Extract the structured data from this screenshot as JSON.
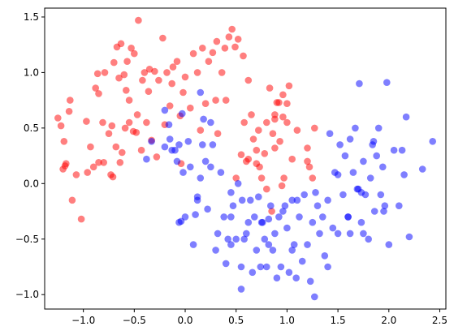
{
  "chart_data": {
    "type": "scatter",
    "title": "",
    "xlabel": "",
    "ylabel": "",
    "xlim": [
      -1.38,
      2.56
    ],
    "ylim": [
      -1.13,
      1.58
    ],
    "xticks": [
      -1.0,
      -0.5,
      0.0,
      0.5,
      1.0,
      1.5,
      2.0,
      2.5
    ],
    "xtick_labels": [
      "−1.0",
      "−0.5",
      "0.0",
      "0.5",
      "1.0",
      "1.5",
      "2.0",
      "2.5"
    ],
    "yticks": [
      -1.0,
      -0.5,
      0.0,
      0.5,
      1.0,
      1.5
    ],
    "ytick_labels": [
      "−1.0",
      "−0.5",
      "0.0",
      "0.5",
      "1.0",
      "1.5"
    ],
    "grid": false,
    "legend": false,
    "marker_alpha": 0.5,
    "series": [
      {
        "color": "#ff0000",
        "points": [
          [
            -1.25,
            0.59
          ],
          [
            -1.22,
            0.52
          ],
          [
            -1.2,
            0.13
          ],
          [
            -1.19,
            0.38
          ],
          [
            -1.18,
            0.16
          ],
          [
            -1.17,
            0.18
          ],
          [
            -1.14,
            0.65
          ],
          [
            -1.13,
            0.75
          ],
          [
            -1.11,
            -0.15
          ],
          [
            -1.07,
            0.08
          ],
          [
            -1.02,
            -0.32
          ],
          [
            -0.97,
            0.56
          ],
          [
            -0.96,
            0.1
          ],
          [
            -0.93,
            0.33
          ],
          [
            -0.9,
            0.15
          ],
          [
            -0.88,
            0.86
          ],
          [
            -0.86,
            0.99
          ],
          [
            -0.85,
            0.81
          ],
          [
            -0.81,
            0.55
          ],
          [
            -0.8,
            0.19
          ],
          [
            -0.79,
            1.0
          ],
          [
            -0.75,
            0.45
          ],
          [
            -0.73,
            0.08
          ],
          [
            -0.72,
            0.52
          ],
          [
            -0.71,
            0.06
          ],
          [
            -0.7,
            1.09
          ],
          [
            -0.68,
            0.33
          ],
          [
            -0.67,
            1.23
          ],
          [
            -0.65,
            0.95
          ],
          [
            -0.64,
            0.19
          ],
          [
            -0.63,
            1.26
          ],
          [
            -0.62,
            0.28
          ],
          [
            -0.6,
            0.98
          ],
          [
            -0.59,
            0.5
          ],
          [
            -0.58,
            0.84
          ],
          [
            -0.57,
            1.1
          ],
          [
            -0.55,
            0.75
          ],
          [
            -0.55,
            0.55
          ],
          [
            -0.53,
            1.22
          ],
          [
            -0.51,
            0.47
          ],
          [
            -0.5,
            1.17
          ],
          [
            -0.48,
            0.46
          ],
          [
            -0.47,
            0.62
          ],
          [
            -0.46,
            1.47
          ],
          [
            -0.43,
            0.3
          ],
          [
            -0.42,
            0.93
          ],
          [
            -0.4,
            1.0
          ],
          [
            -0.38,
            0.55
          ],
          [
            -0.36,
            0.83
          ],
          [
            -0.35,
            1.03
          ],
          [
            -0.33,
            0.39
          ],
          [
            -0.3,
            1.01
          ],
          [
            -0.28,
            0.24
          ],
          [
            -0.26,
            0.93
          ],
          [
            -0.22,
            1.31
          ],
          [
            -0.2,
            0.53
          ],
          [
            -0.18,
            1.0
          ],
          [
            -0.15,
            0.7
          ],
          [
            -0.13,
            0.9
          ],
          [
            -0.12,
            1.05
          ],
          [
            -0.08,
            1.1
          ],
          [
            -0.05,
            0.61
          ],
          [
            -0.02,
            0.82
          ],
          [
            0.0,
            0.96
          ],
          [
            0.05,
            0.68
          ],
          [
            0.08,
            1.17
          ],
          [
            0.12,
            1.0
          ],
          [
            0.15,
            0.48
          ],
          [
            0.17,
            1.22
          ],
          [
            0.2,
            0.72
          ],
          [
            0.23,
            1.1
          ],
          [
            0.27,
            1.18
          ],
          [
            0.3,
            0.75
          ],
          [
            0.32,
            0.45
          ],
          [
            0.36,
            1.0
          ],
          [
            0.39,
            1.22
          ],
          [
            0.43,
            1.32
          ],
          [
            0.46,
            1.39
          ],
          [
            0.49,
            1.23
          ],
          [
            0.52,
            1.3
          ],
          [
            0.55,
            0.26
          ],
          [
            0.58,
            0.55
          ],
          [
            0.6,
            0.2
          ],
          [
            0.62,
            0.93
          ],
          [
            0.65,
            0.62
          ],
          [
            0.67,
            0.4
          ],
          [
            0.7,
            0.18
          ],
          [
            0.72,
            0.48
          ],
          [
            0.75,
            0.05
          ],
          [
            0.78,
            0.27
          ],
          [
            0.8,
            0.55
          ],
          [
            0.83,
            0.86
          ],
          [
            0.86,
            0.45
          ],
          [
            0.88,
            0.62
          ],
          [
            0.9,
            0.73
          ],
          [
            0.93,
            0.38
          ],
          [
            0.96,
            0.6
          ],
          [
            1.0,
            0.55
          ],
          [
            1.1,
            0.48
          ],
          [
            1.2,
            0.32
          ],
          [
            1.22,
            0.15
          ],
          [
            1.25,
            0.05
          ],
          [
            1.27,
            0.5
          ],
          [
            1.0,
            0.72
          ],
          [
            0.85,
            -0.25
          ],
          [
            0.8,
            -0.05
          ],
          [
            0.95,
            -0.02
          ],
          [
            1.05,
            0.22
          ],
          [
            0.7,
            0.3
          ],
          [
            0.5,
            0.05
          ],
          [
            0.57,
            1.15
          ],
          [
            0.62,
            0.22
          ],
          [
            0.88,
            0.32
          ],
          [
            0.97,
            0.05
          ],
          [
            0.73,
            0.15
          ],
          [
            0.96,
            0.8
          ],
          [
            0.4,
            0.75
          ],
          [
            1.2,
            0.2
          ],
          [
            0.88,
            0.58
          ],
          [
            0.31,
            1.28
          ],
          [
            -0.04,
            0.18
          ],
          [
            -0.85,
            0.19
          ],
          [
            0.92,
            0.73
          ],
          [
            1.02,
            0.88
          ]
        ]
      },
      {
        "color": "#0000ff",
        "points": [
          [
            -0.38,
            0.22
          ],
          [
            -0.33,
            0.38
          ],
          [
            -0.2,
            0.33
          ],
          [
            -0.2,
            0.66
          ],
          [
            -0.16,
            0.53
          ],
          [
            -0.15,
            0.4
          ],
          [
            -0.13,
            0.3
          ],
          [
            -0.1,
            0.3
          ],
          [
            -0.08,
            0.2
          ],
          [
            -0.06,
            -0.35
          ],
          [
            -0.06,
            0.35
          ],
          [
            -0.03,
            0.63
          ],
          [
            -0.02,
            0.1
          ],
          [
            0.0,
            -0.3
          ],
          [
            0.03,
            0.38
          ],
          [
            0.05,
            0.15
          ],
          [
            0.08,
            -0.55
          ],
          [
            0.1,
            -0.28
          ],
          [
            0.12,
            -0.12
          ],
          [
            0.15,
            0.05
          ],
          [
            0.17,
            0.35
          ],
          [
            0.2,
            0.2
          ],
          [
            0.22,
            -0.23
          ],
          [
            0.25,
            0.15
          ],
          [
            0.27,
            0.35
          ],
          [
            0.3,
            -0.6
          ],
          [
            0.32,
            -0.45
          ],
          [
            0.35,
            0.1
          ],
          [
            0.38,
            -0.3
          ],
          [
            0.4,
            -0.72
          ],
          [
            0.42,
            -0.5
          ],
          [
            0.45,
            -0.55
          ],
          [
            0.47,
            -0.2
          ],
          [
            0.5,
            -0.5
          ],
          [
            0.52,
            0.0
          ],
          [
            0.55,
            -0.75
          ],
          [
            0.56,
            -0.15
          ],
          [
            0.58,
            -0.5
          ],
          [
            0.6,
            -0.45
          ],
          [
            0.62,
            -0.35
          ],
          [
            0.64,
            -0.15
          ],
          [
            0.66,
            -0.8
          ],
          [
            0.68,
            -0.3
          ],
          [
            0.7,
            -0.6
          ],
          [
            0.72,
            -0.12
          ],
          [
            0.74,
            -0.75
          ],
          [
            0.76,
            -0.35
          ],
          [
            0.78,
            -0.5
          ],
          [
            0.8,
            -0.75
          ],
          [
            0.82,
            -0.55
          ],
          [
            0.84,
            -0.2
          ],
          [
            0.86,
            -0.6
          ],
          [
            0.88,
            -0.45
          ],
          [
            0.9,
            -0.85
          ],
          [
            0.92,
            -0.3
          ],
          [
            0.94,
            -0.75
          ],
          [
            0.96,
            -0.25
          ],
          [
            0.98,
            -0.2
          ],
          [
            1.0,
            -0.4
          ],
          [
            1.02,
            -0.8
          ],
          [
            1.05,
            -0.15
          ],
          [
            1.07,
            -0.55
          ],
          [
            1.09,
            -0.85
          ],
          [
            1.12,
            -0.3
          ],
          [
            1.15,
            -0.7
          ],
          [
            1.17,
            -0.1
          ],
          [
            1.2,
            -0.55
          ],
          [
            1.23,
            -0.88
          ],
          [
            1.25,
            -0.35
          ],
          [
            1.27,
            -1.02
          ],
          [
            1.3,
            -0.2
          ],
          [
            1.32,
            -0.45
          ],
          [
            1.35,
            -0.3
          ],
          [
            1.37,
            -0.65
          ],
          [
            1.4,
            -0.75
          ],
          [
            1.42,
            0.45
          ],
          [
            1.45,
            -0.4
          ],
          [
            1.47,
            0.1
          ],
          [
            1.5,
            -0.45
          ],
          [
            1.52,
            0.35
          ],
          [
            1.55,
            -0.1
          ],
          [
            1.57,
            0.25
          ],
          [
            1.6,
            -0.3
          ],
          [
            1.62,
            -0.45
          ],
          [
            1.65,
            0.1
          ],
          [
            1.67,
            0.5
          ],
          [
            1.69,
            -0.05
          ],
          [
            1.71,
            0.9
          ],
          [
            1.73,
            -0.35
          ],
          [
            1.75,
            0.2
          ],
          [
            1.77,
            -0.1
          ],
          [
            1.8,
            -0.5
          ],
          [
            1.82,
            0.05
          ],
          [
            1.84,
            0.35
          ],
          [
            1.86,
            -0.25
          ],
          [
            1.88,
            0.25
          ],
          [
            1.9,
            0.5
          ],
          [
            1.92,
            -0.1
          ],
          [
            1.94,
            0.15
          ],
          [
            1.96,
            -0.2
          ],
          [
            1.98,
            0.91
          ],
          [
            2.0,
            -0.55
          ],
          [
            2.05,
            0.3
          ],
          [
            2.1,
            -0.2
          ],
          [
            2.13,
            0.3
          ],
          [
            2.15,
            0.08
          ],
          [
            2.17,
            0.6
          ],
          [
            2.2,
            -0.48
          ],
          [
            2.33,
            0.13
          ],
          [
            2.43,
            0.38
          ],
          [
            1.7,
            -0.05
          ],
          [
            0.45,
            -0.08
          ],
          [
            0.75,
            -0.35
          ],
          [
            1.28,
            -0.08
          ],
          [
            1.6,
            -0.3
          ],
          [
            1.95,
            -0.25
          ],
          [
            0.18,
            0.58
          ],
          [
            0.15,
            0.82
          ],
          [
            0.12,
            -0.15
          ],
          [
            -0.04,
            -0.34
          ],
          [
            0.82,
            -0.32
          ],
          [
            1.05,
            -0.6
          ],
          [
            1.5,
            0.08
          ],
          [
            1.85,
            0.38
          ],
          [
            0.45,
            -0.3
          ],
          [
            1.75,
            -0.45
          ],
          [
            1.62,
            0.4
          ],
          [
            1.4,
            -0.15
          ],
          [
            1.1,
            -0.15
          ],
          [
            0.25,
            0.55
          ],
          [
            1.73,
            -0.08
          ],
          [
            0.55,
            -0.95
          ]
        ]
      }
    ]
  }
}
